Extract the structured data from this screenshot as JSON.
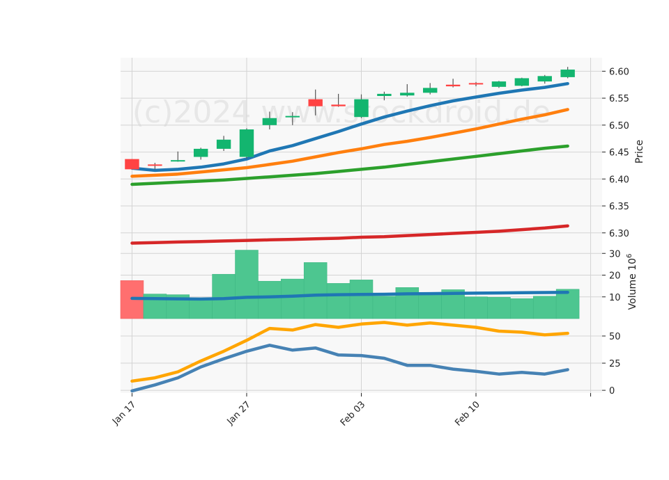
{
  "chart_data": [
    {
      "type": "candlestick",
      "panel": "price",
      "ylabel": "Price",
      "ylim": [
        6.27,
        6.625
      ],
      "yticks": [
        "6.30",
        "6.35",
        "6.40",
        "6.45",
        "6.50",
        "6.55",
        "6.60"
      ],
      "ytick_values": [
        6.3,
        6.35,
        6.4,
        6.45,
        6.5,
        6.55,
        6.6
      ],
      "xlim": [
        -0.5,
        20.5
      ],
      "xticks": [
        {
          "pos": 0,
          "label": "Jan 17"
        },
        {
          "pos": 5,
          "label": "Jan 27"
        },
        {
          "pos": 10,
          "label": "Feb 03"
        },
        {
          "pos": 15,
          "label": "Feb 10"
        },
        {
          "pos": 20,
          "label": ""
        }
      ],
      "watermark": "(c)2024 www.stockdroid.de",
      "candles": [
        {
          "o": 6.437,
          "h": 6.437,
          "l": 6.418,
          "c": 6.418
        },
        {
          "o": 6.427,
          "h": 6.43,
          "l": 6.418,
          "c": 6.425
        },
        {
          "o": 6.434,
          "h": 6.451,
          "l": 6.432,
          "c": 6.435
        },
        {
          "o": 6.441,
          "h": 6.458,
          "l": 6.436,
          "c": 6.456
        },
        {
          "o": 6.456,
          "h": 6.48,
          "l": 6.452,
          "c": 6.473
        },
        {
          "o": 6.441,
          "h": 6.494,
          "l": 6.438,
          "c": 6.492
        },
        {
          "o": 6.5,
          "h": 6.525,
          "l": 6.492,
          "c": 6.513
        },
        {
          "o": 6.515,
          "h": 6.524,
          "l": 6.5,
          "c": 6.517
        },
        {
          "o": 6.548,
          "h": 6.566,
          "l": 6.518,
          "c": 6.535
        },
        {
          "o": 6.538,
          "h": 6.558,
          "l": 6.534,
          "c": 6.535
        },
        {
          "o": 6.515,
          "h": 6.557,
          "l": 6.513,
          "c": 6.548
        },
        {
          "o": 6.554,
          "h": 6.562,
          "l": 6.546,
          "c": 6.558
        },
        {
          "o": 6.555,
          "h": 6.576,
          "l": 6.553,
          "c": 6.56
        },
        {
          "o": 6.56,
          "h": 6.578,
          "l": 6.557,
          "c": 6.569
        },
        {
          "o": 6.575,
          "h": 6.586,
          "l": 6.57,
          "c": 6.572
        },
        {
          "o": 6.578,
          "h": 6.58,
          "l": 6.572,
          "c": 6.576
        },
        {
          "o": 6.571,
          "h": 6.582,
          "l": 6.569,
          "c": 6.581
        },
        {
          "o": 6.573,
          "h": 6.588,
          "l": 6.572,
          "c": 6.587
        },
        {
          "o": 6.581,
          "h": 6.593,
          "l": 6.577,
          "c": 6.591
        },
        {
          "o": 6.589,
          "h": 6.608,
          "l": 6.587,
          "c": 6.603
        }
      ],
      "series": [
        {
          "color": "#1f77b4",
          "values": [
            6.42,
            6.416,
            6.418,
            6.422,
            6.428,
            6.437,
            6.452,
            6.462,
            6.475,
            6.488,
            6.502,
            6.515,
            6.526,
            6.536,
            6.545,
            6.552,
            6.559,
            6.565,
            6.57,
            6.577
          ]
        },
        {
          "color": "#ff7f0e",
          "values": [
            6.405,
            6.407,
            6.409,
            6.413,
            6.417,
            6.421,
            6.427,
            6.433,
            6.441,
            6.449,
            6.456,
            6.464,
            6.47,
            6.477,
            6.485,
            6.493,
            6.502,
            6.511,
            6.519,
            6.529
          ]
        },
        {
          "color": "#2ca02c",
          "values": [
            6.39,
            6.392,
            6.394,
            6.396,
            6.398,
            6.401,
            6.404,
            6.407,
            6.41,
            6.414,
            6.418,
            6.422,
            6.427,
            6.432,
            6.437,
            6.442,
            6.447,
            6.452,
            6.457,
            6.461
          ]
        },
        {
          "color": "#d62728",
          "values": [
            6.281,
            6.282,
            6.283,
            6.284,
            6.285,
            6.286,
            6.287,
            6.288,
            6.289,
            6.29,
            6.292,
            6.293,
            6.295,
            6.297,
            6.299,
            6.301,
            6.303,
            6.306,
            6.309,
            6.313
          ]
        }
      ]
    },
    {
      "type": "bar",
      "panel": "volume",
      "ylabel": "Volume  10",
      "ylabel_exponent": "6",
      "ylim": [
        0,
        32
      ],
      "yticks": [
        "10",
        "20",
        "30"
      ],
      "ytick_values": [
        10,
        20,
        30
      ],
      "values": [
        17.5,
        11.3,
        11.0,
        9.0,
        20.4,
        31.5,
        17.2,
        18.2,
        25.8,
        16.2,
        17.8,
        10.3,
        14.3,
        11.2,
        13.3,
        10.0,
        9.8,
        9.2,
        10.3,
        13.5
      ],
      "colors": [
        "#ff6f6f",
        "#4dc690",
        "#4dc690",
        "#4dc690",
        "#4dc690",
        "#4dc690",
        "#4dc690",
        "#4dc690",
        "#4dc690",
        "#4dc690",
        "#4dc690",
        "#4dc690",
        "#4dc690",
        "#4dc690",
        "#4dc690",
        "#4dc690",
        "#4dc690",
        "#4dc690",
        "#4dc690",
        "#4dc690"
      ],
      "series": [
        {
          "color": "#1f77b4",
          "values": [
            9.3,
            9.2,
            9.1,
            9.0,
            9.2,
            9.8,
            10.0,
            10.3,
            10.8,
            11.0,
            11.1,
            11.2,
            11.4,
            11.5,
            11.6,
            11.7,
            11.8,
            11.9,
            12.0,
            12.1
          ]
        }
      ]
    },
    {
      "type": "line",
      "panel": "indicator",
      "ylim": [
        -2.5,
        66
      ],
      "yticks": [
        "0",
        "25",
        "50"
      ],
      "ytick_values": [
        0,
        25,
        50
      ],
      "series": [
        {
          "color": "#ffa500",
          "values": [
            8.5,
            11.5,
            17.0,
            27.0,
            36.0,
            46.0,
            57.0,
            55.5,
            60.5,
            58.0,
            61.0,
            62.5,
            60.0,
            62.0,
            60.0,
            58.0,
            54.5,
            53.5,
            51.0,
            52.5
          ]
        },
        {
          "color": "#4682b4",
          "values": [
            -0.5,
            5.0,
            11.5,
            21.5,
            29.0,
            36.0,
            41.5,
            37.0,
            39.0,
            32.5,
            32.0,
            29.5,
            23.0,
            23.0,
            19.5,
            17.5,
            15.0,
            16.5,
            15.0,
            19.0
          ]
        }
      ]
    }
  ]
}
